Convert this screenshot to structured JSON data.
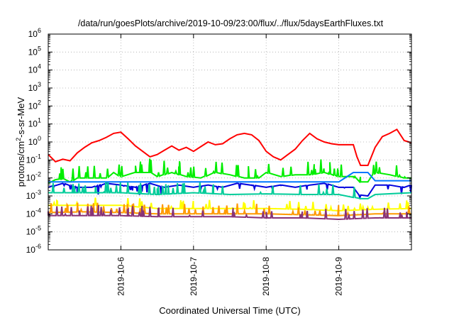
{
  "chart_data": {
    "type": "line",
    "title": "/data/run/goesPlots/archive/2019-10-09/23:00/flux/../flux/5daysEarthFluxes.txt",
    "xlabel": "Coordinated Universal Time (UTC)",
    "ylabel": {
      "base": "protons/cm",
      "sup": "2",
      "rest": "-s-sr-MeV"
    },
    "yscale": "log",
    "x_range_days": [
      0,
      5
    ],
    "ylim_exponents": [
      -6,
      6
    ],
    "x_ticks": [
      {
        "day": 1,
        "label": "2019-10-6"
      },
      {
        "day": 2,
        "label": "2019-10-7"
      },
      {
        "day": 3,
        "label": "2019-10-8"
      },
      {
        "day": 4,
        "label": "2019-10-9"
      }
    ],
    "y_ticks": [
      {
        "exp": -6,
        "label": "-6"
      },
      {
        "exp": -5,
        "label": "-5"
      },
      {
        "exp": -4,
        "label": "-4"
      },
      {
        "exp": -3,
        "label": "-3"
      },
      {
        "exp": -2,
        "label": "-2"
      },
      {
        "exp": -1,
        "label": "-1"
      },
      {
        "exp": 0,
        "label": "0"
      },
      {
        "exp": 1,
        "label": "1"
      },
      {
        "exp": 2,
        "label": "2"
      },
      {
        "exp": 3,
        "label": "3"
      },
      {
        "exp": 4,
        "label": "4"
      },
      {
        "exp": 5,
        "label": "5"
      },
      {
        "exp": 6,
        "label": "6"
      }
    ],
    "y_tick_base": "10",
    "grid": true,
    "series": [
      {
        "color": "#ff0000",
        "width": 2,
        "points": [
          [
            0,
            0.2
          ],
          [
            0.1,
            0.08
          ],
          [
            0.2,
            0.11
          ],
          [
            0.3,
            0.09
          ],
          [
            0.4,
            0.25
          ],
          [
            0.5,
            0.5
          ],
          [
            0.6,
            0.9
          ],
          [
            0.7,
            1.2
          ],
          [
            0.8,
            1.8
          ],
          [
            0.9,
            3
          ],
          [
            1,
            3.5
          ],
          [
            1.1,
            1.5
          ],
          [
            1.2,
            0.6
          ],
          [
            1.3,
            0.3
          ],
          [
            1.4,
            0.15
          ],
          [
            1.5,
            0.2
          ],
          [
            1.6,
            0.35
          ],
          [
            1.7,
            0.6
          ],
          [
            1.8,
            0.35
          ],
          [
            1.9,
            0.5
          ],
          [
            2,
            0.3
          ],
          [
            2.1,
            0.55
          ],
          [
            2.2,
            1
          ],
          [
            2.3,
            0.7
          ],
          [
            2.4,
            0.8
          ],
          [
            2.5,
            1.5
          ],
          [
            2.6,
            2.5
          ],
          [
            2.7,
            3
          ],
          [
            2.8,
            2.5
          ],
          [
            2.9,
            1.2
          ],
          [
            3,
            0.3
          ],
          [
            3.1,
            0.15
          ],
          [
            3.2,
            0.1
          ],
          [
            3.3,
            0.2
          ],
          [
            3.4,
            0.4
          ],
          [
            3.5,
            1.2
          ],
          [
            3.6,
            3
          ],
          [
            3.7,
            1.5
          ],
          [
            3.8,
            1
          ],
          [
            3.9,
            0.8
          ],
          [
            4,
            0.7
          ],
          [
            4.2,
            0.7
          ],
          [
            4.25,
            0.15
          ],
          [
            4.3,
            0.05
          ],
          [
            4.4,
            0.05
          ],
          [
            4.5,
            0.5
          ],
          [
            4.6,
            2
          ],
          [
            4.7,
            3
          ],
          [
            4.8,
            5
          ],
          [
            4.9,
            1.2
          ],
          [
            5,
            0.9
          ]
        ]
      },
      {
        "color": "#00ee00",
        "width": 2,
        "points": [
          [
            0,
            0.005
          ],
          [
            0.1,
            0.008
          ],
          [
            0.2,
            0.009
          ],
          [
            0.3,
            0.006
          ],
          [
            0.4,
            0.01
          ],
          [
            0.6,
            0.01
          ],
          [
            0.8,
            0.01
          ],
          [
            0.9,
            0.02
          ],
          [
            1,
            0.012
          ],
          [
            1.2,
            0.02
          ],
          [
            1.4,
            0.02
          ],
          [
            1.5,
            0.012
          ],
          [
            1.7,
            0.02
          ],
          [
            1.9,
            0.012
          ],
          [
            2.1,
            0.01
          ],
          [
            2.3,
            0.02
          ],
          [
            2.5,
            0.015
          ],
          [
            2.7,
            0.01
          ],
          [
            2.9,
            0.01
          ],
          [
            3,
            0.02
          ],
          [
            3.2,
            0.012
          ],
          [
            3.4,
            0.015
          ],
          [
            3.6,
            0.015
          ],
          [
            3.8,
            0.02
          ],
          [
            4,
            0.012
          ],
          [
            4.2,
            0.012
          ],
          [
            4.3,
            0.006
          ],
          [
            4.4,
            0.006
          ],
          [
            4.5,
            0.02
          ],
          [
            4.7,
            0.015
          ],
          [
            4.9,
            0.01
          ],
          [
            5,
            0.01
          ]
        ],
        "spikes": 60,
        "spike_factor": 6,
        "seed": 11
      },
      {
        "color": "#0077ff",
        "width": 2,
        "points": [
          [
            0,
            0.006
          ],
          [
            0.5,
            0.006
          ],
          [
            1,
            0.006
          ],
          [
            1.5,
            0.006
          ],
          [
            2,
            0.006
          ],
          [
            2.5,
            0.006
          ],
          [
            3,
            0.006
          ],
          [
            3.5,
            0.006
          ],
          [
            4,
            0.006
          ],
          [
            4.2,
            0.02
          ],
          [
            4.4,
            0.02
          ],
          [
            4.5,
            0.007
          ],
          [
            4.7,
            0.007
          ],
          [
            5,
            0.007
          ]
        ]
      },
      {
        "color": "#0000dd",
        "width": 2,
        "points": [
          [
            0,
            0.003
          ],
          [
            0.2,
            0.005
          ],
          [
            0.4,
            0.003
          ],
          [
            0.6,
            0.003
          ],
          [
            0.8,
            0.005
          ],
          [
            1,
            0.004
          ],
          [
            1.2,
            0.003
          ],
          [
            1.4,
            0.005
          ],
          [
            1.6,
            0.003
          ],
          [
            1.8,
            0.004
          ],
          [
            2,
            0.003
          ],
          [
            2.2,
            0.004
          ],
          [
            2.4,
            0.003
          ],
          [
            2.6,
            0.005
          ],
          [
            2.8,
            0.004
          ],
          [
            3,
            0.003
          ],
          [
            3.2,
            0.004
          ],
          [
            3.4,
            0.003
          ],
          [
            3.6,
            0.004
          ],
          [
            3.8,
            0.005
          ],
          [
            4,
            0.003
          ],
          [
            4.2,
            0.003
          ],
          [
            4.3,
            0.001
          ],
          [
            4.4,
            0.001
          ],
          [
            4.5,
            0.004
          ],
          [
            4.7,
            0.004
          ],
          [
            4.9,
            0.003
          ],
          [
            5,
            0.004
          ]
        ],
        "spikes": 35,
        "spike_factor": 0.3,
        "seed": 23
      },
      {
        "color": "#00cc99",
        "width": 2,
        "points": [
          [
            0,
            0.0015
          ],
          [
            0.5,
            0.0015
          ],
          [
            1,
            0.0015
          ],
          [
            1.5,
            0.0012
          ],
          [
            2,
            0.0015
          ],
          [
            2.5,
            0.0012
          ],
          [
            3,
            0.0013
          ],
          [
            3.5,
            0.0012
          ],
          [
            4,
            0.0012
          ],
          [
            4.3,
            0.0007
          ],
          [
            4.4,
            0.0007
          ],
          [
            4.5,
            0.0012
          ],
          [
            5,
            0.0015
          ]
        ],
        "spikes": 45,
        "spike_factor": 4,
        "seed": 37
      },
      {
        "color": "#ffff00",
        "width": 2,
        "points": [
          [
            0,
            0.0003
          ],
          [
            0.5,
            0.0003
          ],
          [
            1,
            0.0003
          ],
          [
            1.5,
            0.0002
          ],
          [
            2,
            0.0002
          ],
          [
            2.5,
            0.0002
          ],
          [
            3,
            0.0002
          ],
          [
            3.5,
            0.00018
          ],
          [
            4,
            0.00015
          ],
          [
            4.5,
            0.00018
          ],
          [
            5,
            0.0002
          ]
        ],
        "spikes": 40,
        "spike_factor": 3,
        "seed": 41
      },
      {
        "color": "#ff9900",
        "width": 2,
        "points": [
          [
            0,
            0.00012
          ],
          [
            0.5,
            0.00013
          ],
          [
            1,
            0.00012
          ],
          [
            1.5,
            0.0001
          ],
          [
            2,
            0.0001
          ],
          [
            2.5,
            0.0001
          ],
          [
            3,
            0.0001
          ],
          [
            3.5,
            9e-05
          ],
          [
            4,
            8e-05
          ],
          [
            4.5,
            0.0001
          ],
          [
            5,
            0.0001
          ]
        ],
        "spikes": 50,
        "spike_factor": 4,
        "seed": 53
      },
      {
        "color": "#883377",
        "width": 2,
        "points": [
          [
            0,
            8e-05
          ],
          [
            0.5,
            8e-05
          ],
          [
            1,
            8e-05
          ],
          [
            1.5,
            7e-05
          ],
          [
            2,
            7e-05
          ],
          [
            2.5,
            7e-05
          ],
          [
            3,
            6e-05
          ],
          [
            3.5,
            6e-05
          ],
          [
            4,
            5e-05
          ],
          [
            4.5,
            6e-05
          ],
          [
            5,
            6e-05
          ]
        ],
        "spikes": 55,
        "spike_factor": 4,
        "seed": 67
      }
    ]
  }
}
